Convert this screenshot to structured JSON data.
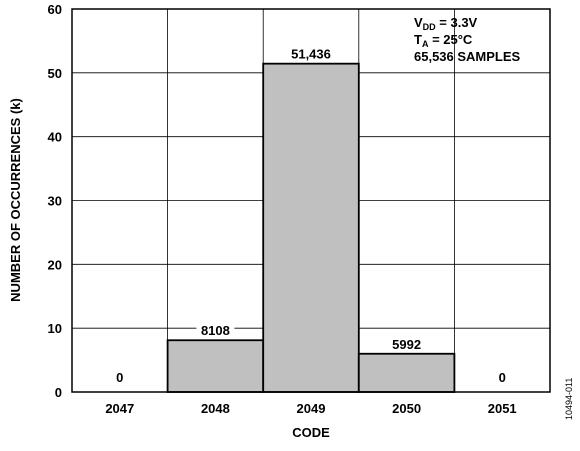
{
  "chart_data": {
    "type": "bar",
    "categories": [
      "2047",
      "2048",
      "2049",
      "2050",
      "2051"
    ],
    "values": [
      0,
      8.108,
      51.436,
      5.992,
      0
    ],
    "data_labels": [
      "0",
      "8108",
      "51,436",
      "5992",
      "0"
    ],
    "xlabel": "CODE",
    "ylabel": "NUMBER OF OCCURRENCES (k)",
    "ylim": [
      0,
      60
    ],
    "yticks": [
      "0",
      "10",
      "20",
      "30",
      "40",
      "50",
      "60"
    ],
    "grid": true,
    "bar_color": "#c0c0c0",
    "annotation": {
      "line1_main": "V",
      "line1_sub": "DD",
      "line1_rest": " = 3.3V",
      "line2_main": "T",
      "line2_sub": "A",
      "line2_rest": " = 25°C",
      "line3": "65,536 SAMPLES",
      "position": "top-right"
    }
  },
  "figure_id": "10494-011"
}
